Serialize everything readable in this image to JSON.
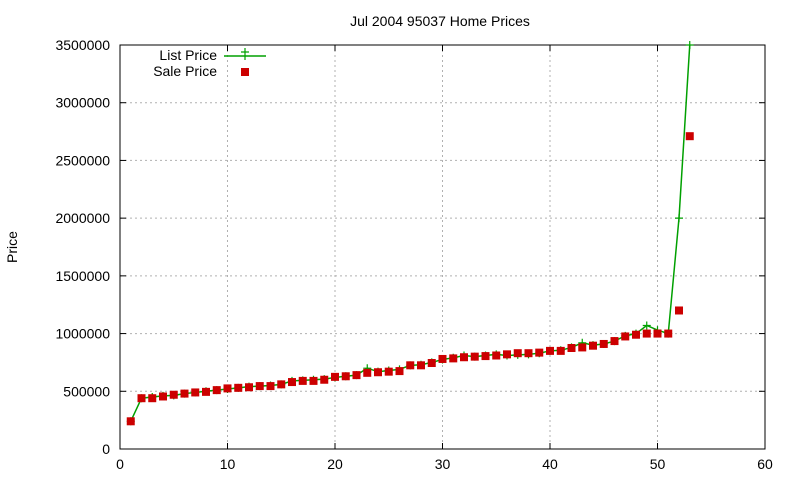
{
  "chart_data": {
    "type": "line",
    "title": "Jul 2004 95037 Home Prices",
    "xlabel": "",
    "ylabel": "Price",
    "xlim": [
      0,
      60
    ],
    "ylim": [
      0,
      3500000
    ],
    "x_ticks": [
      0,
      10,
      20,
      30,
      40,
      50,
      60
    ],
    "y_ticks": [
      0,
      500000,
      1000000,
      1500000,
      2000000,
      2500000,
      3000000,
      3500000
    ],
    "grid": true,
    "legend_position": "top-left",
    "series": [
      {
        "name": "List Price",
        "style": "line+plus",
        "color": "#00a000",
        "x": [
          1,
          2,
          3,
          4,
          5,
          6,
          7,
          8,
          9,
          10,
          11,
          12,
          13,
          14,
          15,
          16,
          17,
          18,
          19,
          20,
          21,
          22,
          23,
          24,
          25,
          26,
          27,
          28,
          29,
          30,
          31,
          32,
          33,
          34,
          35,
          36,
          37,
          38,
          39,
          40,
          41,
          42,
          43,
          44,
          45,
          46,
          47,
          48,
          49,
          50,
          51,
          52,
          53
        ],
        "values": [
          240000,
          440000,
          450000,
          460000,
          465000,
          480000,
          490000,
          500000,
          510000,
          520000,
          530000,
          540000,
          545000,
          550000,
          560000,
          590000,
          595000,
          600000,
          605000,
          620000,
          630000,
          640000,
          700000,
          670000,
          680000,
          690000,
          725000,
          730000,
          750000,
          775000,
          790000,
          810000,
          800000,
          810000,
          820000,
          810000,
          815000,
          820000,
          830000,
          850000,
          855000,
          880000,
          920000,
          900000,
          910000,
          935000,
          980000,
          1000000,
          1070000,
          1030000,
          1000000,
          2000000,
          3500000
        ]
      },
      {
        "name": "Sale Price",
        "style": "square",
        "color": "#cc0000",
        "x": [
          1,
          2,
          3,
          4,
          5,
          6,
          7,
          8,
          9,
          10,
          11,
          12,
          13,
          14,
          15,
          16,
          17,
          18,
          19,
          20,
          21,
          22,
          23,
          24,
          25,
          26,
          27,
          28,
          29,
          30,
          31,
          32,
          33,
          34,
          35,
          36,
          37,
          38,
          39,
          40,
          41,
          42,
          43,
          44,
          45,
          46,
          47,
          48,
          49,
          50,
          51,
          52,
          53
        ],
        "values": [
          240000,
          440000,
          440000,
          455000,
          470000,
          480000,
          490000,
          495000,
          510000,
          525000,
          530000,
          535000,
          545000,
          545000,
          560000,
          580000,
          590000,
          590000,
          600000,
          625000,
          630000,
          640000,
          660000,
          665000,
          670000,
          675000,
          725000,
          725000,
          745000,
          780000,
          785000,
          795000,
          800000,
          805000,
          810000,
          820000,
          830000,
          830000,
          835000,
          850000,
          850000,
          875000,
          880000,
          895000,
          910000,
          935000,
          975000,
          990000,
          1000000,
          1000000,
          1000000,
          1200000,
          2710000
        ]
      }
    ]
  }
}
